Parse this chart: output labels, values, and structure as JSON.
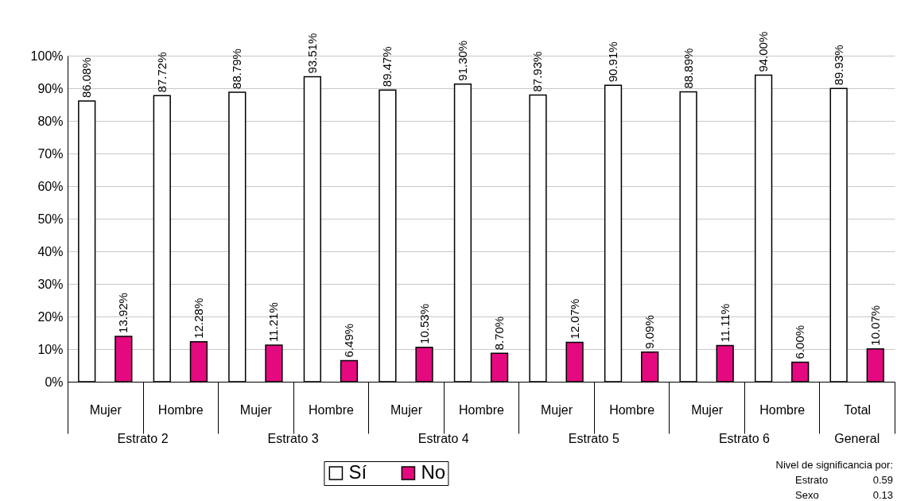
{
  "chart_data": {
    "type": "bar",
    "categories": [
      "Mujer",
      "Hombre",
      "Mujer",
      "Hombre",
      "Mujer",
      "Hombre",
      "Mujer",
      "Hombre",
      "Mujer",
      "Hombre",
      "Total"
    ],
    "series": [
      {
        "name": "Sí",
        "color": "#ffffff",
        "values": [
          86.08,
          87.72,
          88.79,
          93.51,
          89.47,
          91.3,
          87.93,
          90.91,
          88.89,
          94.0,
          89.93
        ],
        "value_labels": [
          "86.08%",
          "87.72%",
          "88.79%",
          "93.51%",
          "89.47%",
          "91.30%",
          "87.93%",
          "90.91%",
          "88.89%",
          "94.00%",
          "89.93%"
        ]
      },
      {
        "name": "No",
        "color": "#e5097f",
        "values": [
          13.92,
          12.28,
          11.21,
          6.49,
          10.53,
          8.7,
          12.07,
          9.09,
          11.11,
          6.0,
          10.07
        ],
        "value_labels": [
          "13.92%",
          "12.28%",
          "11.21%",
          "6.49%",
          "10.53%",
          "8.70%",
          "12.07%",
          "9.09%",
          "11.11%",
          "6.00%",
          "10.07%"
        ]
      }
    ],
    "ylim": [
      0,
      100
    ],
    "yticks": [
      {
        "value": 0,
        "label": "0%"
      },
      {
        "value": 10,
        "label": "10%"
      },
      {
        "value": 20,
        "label": "20%"
      },
      {
        "value": 30,
        "label": "30%"
      },
      {
        "value": 40,
        "label": "40%"
      },
      {
        "value": 50,
        "label": "50%"
      },
      {
        "value": 60,
        "label": "60%"
      },
      {
        "value": 70,
        "label": "70%"
      },
      {
        "value": 80,
        "label": "80%"
      },
      {
        "value": 90,
        "label": "90%"
      },
      {
        "value": 100,
        "label": "100%"
      }
    ],
    "grid": "y",
    "legend": "bottom",
    "annotations": [
      "Estrato 2",
      "Estrato 3",
      "Estrato 4",
      "Estrato 5",
      "Estrato 6",
      "General",
      "Nivel de significancia por:",
      "Estrato",
      "0.59",
      "Sexo",
      "0.13"
    ]
  }
}
